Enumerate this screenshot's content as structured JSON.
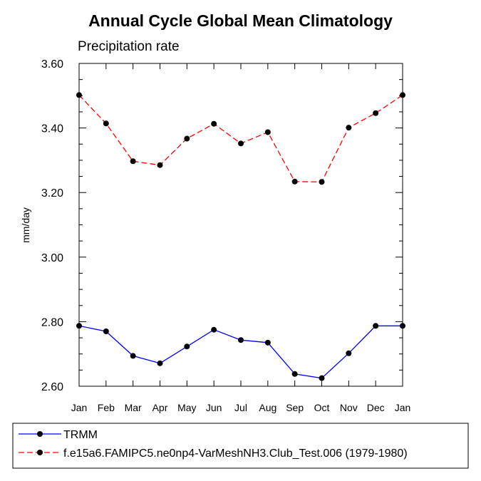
{
  "chart_data": {
    "type": "line",
    "title": "Annual Cycle Global Mean Climatology",
    "subtitle": "Precipitation rate",
    "xlabel": "",
    "ylabel": "mm/day",
    "categories": [
      "Jan",
      "Feb",
      "Mar",
      "Apr",
      "May",
      "Jun",
      "Jul",
      "Aug",
      "Sep",
      "Oct",
      "Nov",
      "Dec",
      "Jan"
    ],
    "ylim": [
      2.6,
      3.6
    ],
    "yticks": [
      2.6,
      2.8,
      3.0,
      3.2,
      3.4,
      3.6
    ],
    "ytick_labels": [
      "2.60",
      "2.80",
      "3.00",
      "3.20",
      "3.40",
      "3.60"
    ],
    "series": [
      {
        "name": "TRMM",
        "color": "#0000ff",
        "line_style": "solid",
        "marker": "filled-circle",
        "values": [
          2.787,
          2.77,
          2.694,
          2.671,
          2.723,
          2.775,
          2.743,
          2.735,
          2.638,
          2.625,
          2.702,
          2.787,
          2.787
        ]
      },
      {
        "name": "f.e15a6.FAMIPC5.ne0np4-VarMeshNH3.Club_Test.006 (1979-1980)",
        "color": "#ff0000",
        "line_style": "dashed",
        "marker": "filled-circle",
        "values": [
          3.502,
          3.414,
          3.297,
          3.285,
          3.367,
          3.413,
          3.352,
          3.387,
          3.234,
          3.233,
          3.401,
          3.446,
          3.502
        ]
      }
    ],
    "legend_position": "bottom"
  }
}
